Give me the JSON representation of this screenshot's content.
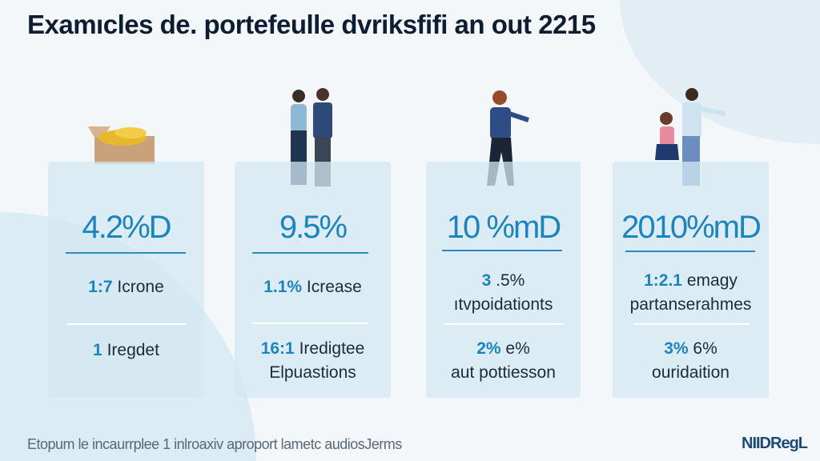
{
  "title": "Examıcles de. portefeulle dvriksfifi an out 2215",
  "cards": [
    {
      "big": "4.2%D",
      "s1_num": "1:7",
      "s1_text": "Icrone",
      "s2_num": "1",
      "s2_text": "Iregdet",
      "s2_line2": ""
    },
    {
      "big": "9.5%",
      "s1_num": "1.1%",
      "s1_text": "Icrease",
      "s2_num": "16:1",
      "s2_text": "Iredigtee",
      "s2_line2": "Elpuastions"
    },
    {
      "big": "10 %mD",
      "s1_num": "3",
      "s1_text": ".5%",
      "s1_line2": "ıtvpoidationts",
      "s2_num": "2%",
      "s2_text": "e%",
      "s2_line2": "aut pottiesson"
    },
    {
      "big": "2010%mD",
      "s1_num": "1:2.1",
      "s1_text": "emagy",
      "s1_line2": "partanserahmes",
      "s2_num": "3%",
      "s2_text": "6%",
      "s2_line2": "ouridaition"
    }
  ],
  "footer": "Etopum le incaurrplee 1 inlroaxiv aproport lametc audiosJerms",
  "logo": "NIIDRegL",
  "colors": {
    "accent": "#1a84c0",
    "title": "#0f1d33",
    "card": "#d5e8f2"
  }
}
